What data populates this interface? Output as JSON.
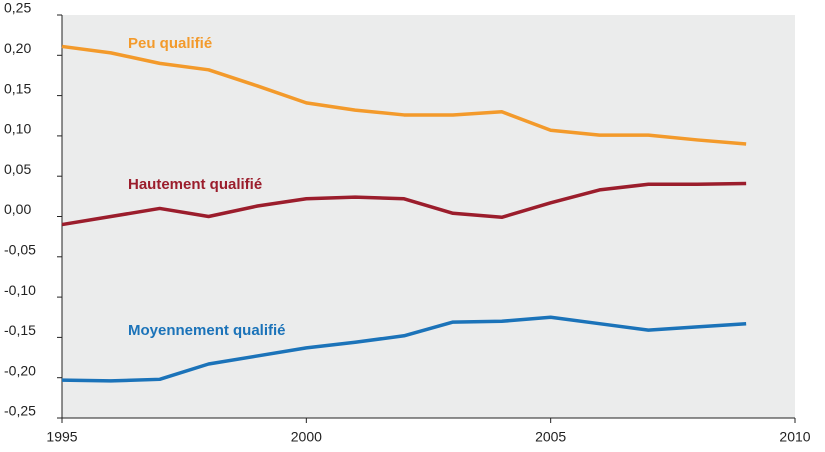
{
  "chart_data": {
    "type": "line",
    "x": [
      1995,
      1996,
      1997,
      1998,
      1999,
      2000,
      2001,
      2002,
      2003,
      2004,
      2005,
      2006,
      2007,
      2008,
      2009
    ],
    "series": [
      {
        "name": "Peu qualifié",
        "color": "#f39a2b",
        "values": [
          0.211,
          0.203,
          0.19,
          0.182,
          0.162,
          0.141,
          0.132,
          0.126,
          0.126,
          0.13,
          0.107,
          0.101,
          0.101,
          0.095,
          0.09
        ]
      },
      {
        "name": "Hautement qualifié",
        "color": "#9b1d2c",
        "values": [
          -0.01,
          0.0,
          0.01,
          0.0,
          0.013,
          0.022,
          0.024,
          0.022,
          0.004,
          -0.001,
          0.017,
          0.033,
          0.04,
          0.04,
          0.041
        ]
      },
      {
        "name": "Moyennement qualifié",
        "color": "#1b73b9",
        "values": [
          -0.203,
          -0.204,
          -0.202,
          -0.183,
          -0.173,
          -0.163,
          -0.156,
          -0.148,
          -0.131,
          -0.13,
          -0.125,
          -0.133,
          -0.141,
          -0.137,
          -0.133
        ]
      }
    ],
    "xlim": [
      1995,
      2010
    ],
    "xticks": [
      1995,
      2000,
      2005,
      2010
    ],
    "ylim": [
      -0.25,
      0.25
    ],
    "yticks": [
      {
        "value": -0.25,
        "label": "-0,25"
      },
      {
        "value": -0.2,
        "label": "-0,20"
      },
      {
        "value": -0.15,
        "label": "-0,15"
      },
      {
        "value": -0.1,
        "label": "-0,10"
      },
      {
        "value": -0.05,
        "label": "-0,05"
      },
      {
        "value": 0,
        "label": "0,00"
      },
      {
        "value": 0.05,
        "label": "0,05"
      },
      {
        "value": 0.1,
        "label": "0,10"
      },
      {
        "value": 0.15,
        "label": "0,15"
      },
      {
        "value": 0.2,
        "label": "0,20"
      },
      {
        "value": 0.25,
        "label": "0,25"
      }
    ]
  }
}
